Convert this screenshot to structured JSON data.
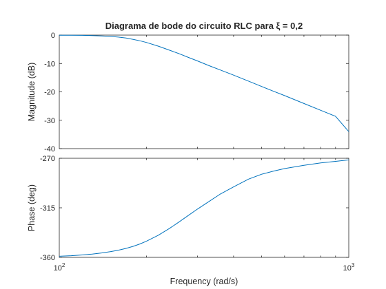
{
  "chart_data": [
    {
      "type": "line",
      "title": "Diagrama de bode do circuito RLC para ξ = 0,2",
      "xlabel": "",
      "ylabel": "Magnitude (dB)",
      "xscale": "log",
      "xlim": [
        100,
        1000
      ],
      "ylim": [
        -40,
        0
      ],
      "yticks": [
        0,
        -10,
        -20,
        -30,
        -40
      ],
      "yticklabels": [
        "0",
        "-10",
        "-20",
        "-30",
        "-40"
      ],
      "grid": false,
      "color": "#0072bd",
      "series": [
        {
          "x": [
            100,
            110,
            120,
            130,
            140,
            150,
            160,
            170,
            180,
            190,
            200,
            220,
            240,
            260,
            280,
            300,
            330,
            360,
            400,
            450,
            500,
            550,
            600,
            700,
            800,
            900,
            1000
          ],
          "values": [
            -0.04,
            -0.06,
            -0.1,
            -0.17,
            -0.28,
            -0.45,
            -0.7,
            -1.05,
            -1.5,
            -2.0,
            -2.6,
            -3.9,
            -5.3,
            -6.6,
            -7.9,
            -9.1,
            -10.8,
            -12.3,
            -14.1,
            -16.2,
            -18.1,
            -19.8,
            -21.3,
            -24.1,
            -26.5,
            -28.6,
            -34.0
          ]
        }
      ]
    },
    {
      "type": "line",
      "title": "",
      "xlabel": "Frequency (rad/s)",
      "ylabel": "Phase (deg)",
      "xscale": "log",
      "xlim": [
        100,
        1000
      ],
      "ylim": [
        -360,
        -270
      ],
      "xticks": [
        100,
        1000
      ],
      "xticklabels": [
        {
          "base": "10",
          "exp": "2"
        },
        {
          "base": "10",
          "exp": "3"
        }
      ],
      "yticks": [
        -270,
        -315,
        -360
      ],
      "yticklabels": [
        "-270",
        "-315",
        "-360"
      ],
      "grid": false,
      "color": "#0072bd",
      "series": [
        {
          "x": [
            100,
            110,
            120,
            130,
            140,
            150,
            160,
            170,
            180,
            190,
            200,
            220,
            240,
            260,
            280,
            300,
            330,
            360,
            400,
            450,
            500,
            550,
            600,
            700,
            800,
            900,
            1000
          ],
          "values": [
            -359.0,
            -358.5,
            -357.8,
            -357.0,
            -356.0,
            -354.9,
            -353.5,
            -351.9,
            -350.0,
            -347.8,
            -345.4,
            -339.9,
            -333.8,
            -327.6,
            -321.7,
            -316.2,
            -309.0,
            -302.5,
            -296.0,
            -289.0,
            -284.5,
            -281.6,
            -279.4,
            -276.4,
            -274.2,
            -272.8,
            -271.5
          ]
        }
      ]
    }
  ]
}
